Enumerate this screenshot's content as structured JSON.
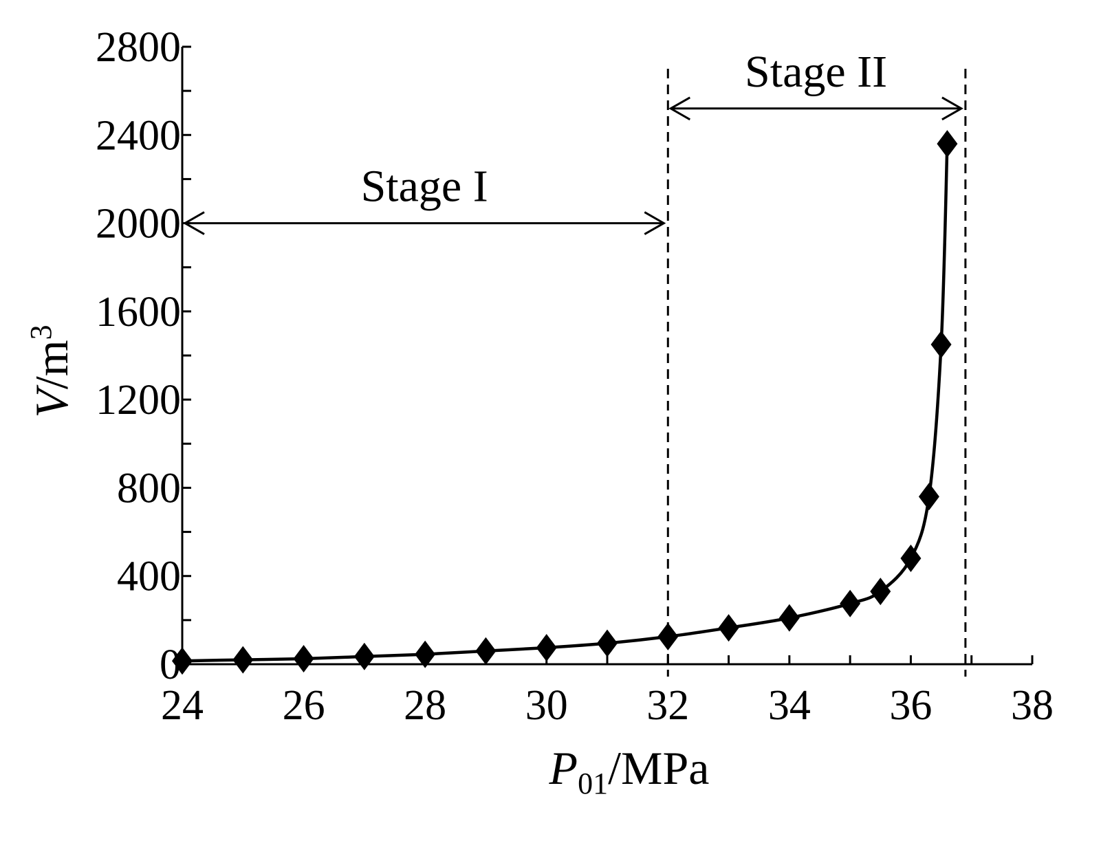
{
  "chart_data": {
    "type": "line",
    "title": "",
    "xlabel": {
      "symbol": "P",
      "subscript": "01",
      "unit": "/MPa"
    },
    "ylabel": {
      "symbol": "V",
      "unit": "/m",
      "superscript": "3"
    },
    "xlim": [
      24,
      38
    ],
    "ylim": [
      0,
      2800
    ],
    "x_ticks": [
      24,
      26,
      28,
      30,
      32,
      34,
      36,
      38
    ],
    "y_ticks": [
      0,
      400,
      800,
      1200,
      1600,
      2000,
      2400,
      2800
    ],
    "x_tick_labels": [
      "24",
      "26",
      "28",
      "30",
      "32",
      "34",
      "36",
      "38"
    ],
    "y_tick_labels": [
      "0",
      "400",
      "800",
      "1200",
      "1600",
      "2000",
      "2400",
      "2800"
    ],
    "grid": false,
    "marker": "diamond",
    "series": [
      {
        "x": [
          24,
          25,
          26,
          27,
          28,
          29,
          30,
          31,
          32,
          33,
          34,
          35,
          35.5,
          36,
          36.3,
          36.5,
          36.6
        ],
        "y": [
          15,
          20,
          25,
          35,
          45,
          60,
          75,
          95,
          125,
          165,
          210,
          275,
          330,
          480,
          760,
          1450,
          2360
        ]
      }
    ],
    "stage_boundaries": [
      32,
      36.9
    ],
    "stages": [
      {
        "label": "Stage I",
        "from": 24,
        "to": 32,
        "arrow_y": 2000
      },
      {
        "label": "Stage II",
        "from": 32,
        "to": 36.9,
        "arrow_y": 2520
      }
    ]
  }
}
